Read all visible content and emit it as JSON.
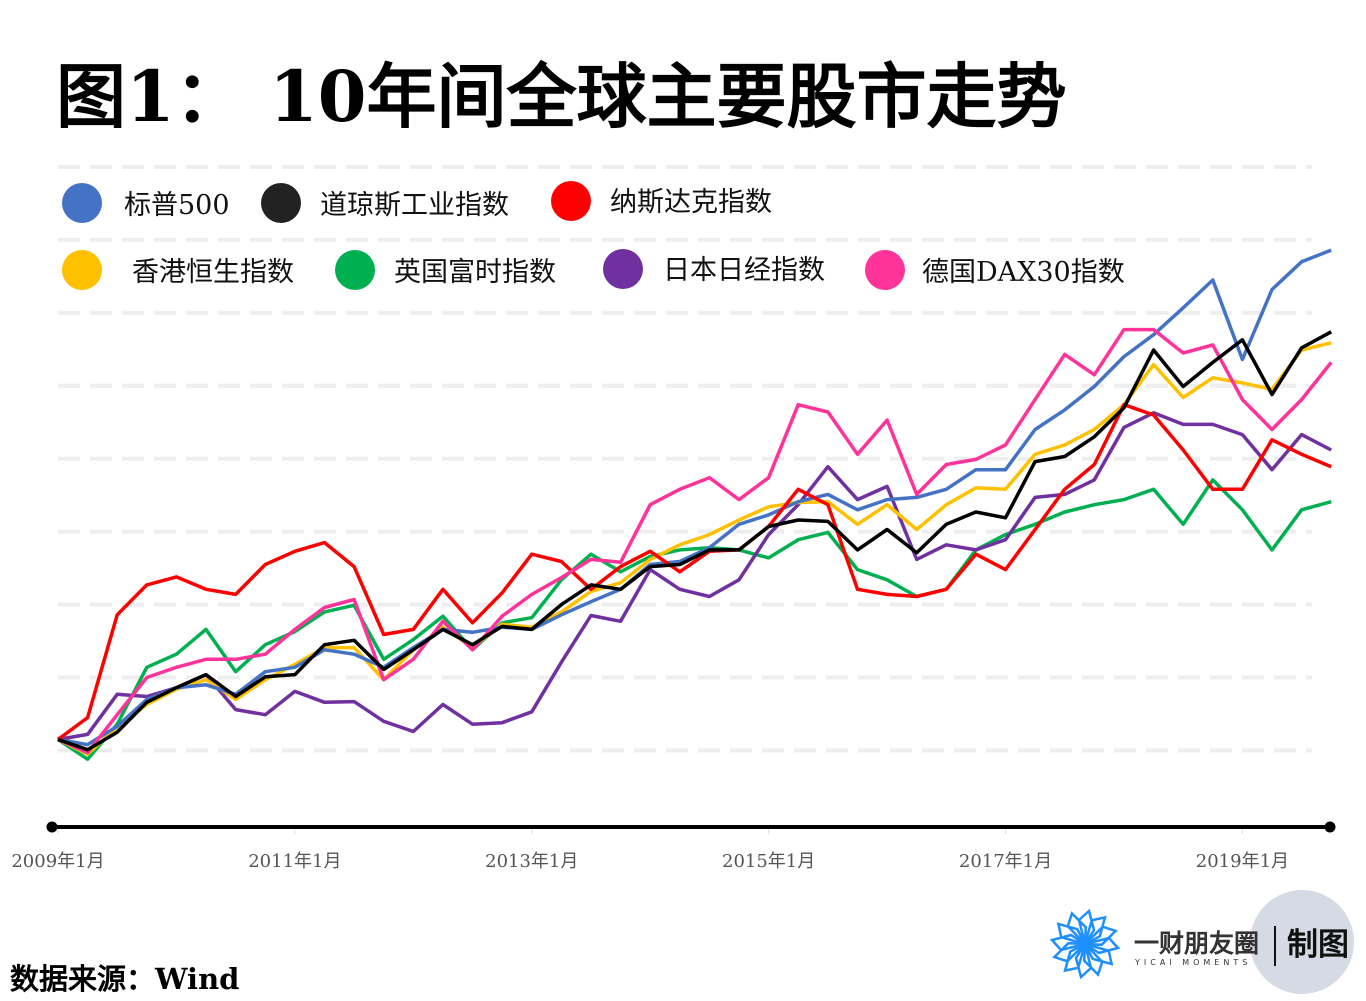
{
  "title": "图1：  10年间全球主要股市走势",
  "source": "数据来源：Wind",
  "logo": {
    "name_cn": "一财朋友圈",
    "name_en": "YICAI MOMENTS",
    "maker": "制图"
  },
  "chart_data": {
    "type": "line",
    "title": "图1：  10年间全球主要股市走势",
    "xlabel": "",
    "ylabel": "",
    "y_units": "relative level (gridline step = 100, start ≈ 15); no y tick labels shown",
    "ylim": [
      -105,
      800
    ],
    "grid": true,
    "gridlines": [
      0,
      100,
      200,
      300,
      400,
      500,
      600,
      700,
      800
    ],
    "legend_placement": "top",
    "x_ticks": [
      "2009年1月",
      "2011年1月",
      "2013年1月",
      "2015年1月",
      "2017年1月",
      "2019年1月"
    ],
    "x_tick_months": [
      0,
      24,
      48,
      72,
      96,
      120
    ],
    "x_months": [
      0,
      3,
      6,
      9,
      12,
      15,
      18,
      21,
      24,
      27,
      30,
      33,
      36,
      39,
      42,
      45,
      48,
      51,
      54,
      57,
      60,
      63,
      66,
      69,
      72,
      75,
      78,
      81,
      84,
      87,
      90,
      93,
      96,
      99,
      102,
      105,
      108,
      111,
      114,
      117,
      120,
      123,
      126,
      129
    ],
    "series": [
      {
        "name": "标普500",
        "color": "#4472C4",
        "values": [
          15,
          8,
          33,
          70,
          86,
          90,
          77,
          108,
          114,
          138,
          132,
          114,
          141,
          166,
          162,
          169,
          166,
          186,
          204,
          221,
          255,
          259,
          278,
          310,
          323,
          341,
          351,
          330,
          344,
          347,
          358,
          385,
          385,
          440,
          467,
          499,
          540,
          570,
          607,
          645,
          536,
          632,
          670,
          686
        ]
      },
      {
        "name": "道琼斯工业指数",
        "color": "#000000",
        "values": [
          15,
          1,
          25,
          66,
          86,
          104,
          74,
          101,
          104,
          145,
          151,
          111,
          138,
          166,
          145,
          170,
          166,
          200,
          227,
          221,
          252,
          255,
          275,
          275,
          307,
          316,
          314,
          275,
          303,
          271,
          310,
          327,
          319,
          396,
          403,
          430,
          470,
          549,
          499,
          532,
          563,
          488,
          552,
          574
        ]
      },
      {
        "name": "纳斯达克指数",
        "color": "#FF0000",
        "values": [
          15,
          45,
          186,
          227,
          238,
          221,
          214,
          255,
          273,
          285,
          252,
          159,
          166,
          221,
          175,
          216,
          269,
          259,
          221,
          252,
          273,
          245,
          273,
          275,
          307,
          358,
          337,
          221,
          214,
          211,
          221,
          269,
          248,
          303,
          358,
          392,
          474,
          460,
          412,
          358,
          358,
          426,
          406,
          389
        ]
      },
      {
        "name": "香港恒生指数",
        "color": "#FFC000",
        "values": [
          15,
          -5,
          32,
          63,
          84,
          97,
          70,
          97,
          118,
          141,
          141,
          97,
          138,
          169,
          141,
          173,
          169,
          190,
          218,
          230,
          262,
          282,
          296,
          316,
          334,
          340,
          341,
          310,
          337,
          303,
          337,
          360,
          358,
          406,
          419,
          440,
          474,
          529,
          484,
          511,
          504,
          495,
          549,
          559
        ]
      },
      {
        "name": "英国富时指数",
        "color": "#00B050",
        "values": [
          15,
          -12,
          36,
          114,
          132,
          166,
          108,
          145,
          163,
          190,
          199,
          125,
          152,
          184,
          138,
          175,
          182,
          234,
          269,
          245,
          266,
          275,
          278,
          275,
          264,
          289,
          299,
          248,
          234,
          211,
          221,
          275,
          296,
          310,
          327,
          337,
          344,
          358,
          310,
          371,
          330,
          275,
          330,
          341
        ]
      },
      {
        "name": "日本日经指数",
        "color": "#7030A0",
        "values": [
          15,
          22,
          77,
          74,
          86,
          104,
          56,
          49,
          81,
          66,
          67,
          40,
          26,
          63,
          36,
          38,
          53,
          121,
          185,
          177,
          248,
          221,
          211,
          234,
          296,
          337,
          389,
          344,
          362,
          262,
          282,
          275,
          289,
          347,
          351,
          371,
          443,
          463,
          447,
          447,
          433,
          385,
          433,
          412
        ]
      },
      {
        "name": "德国DAX30指数",
        "color": "#FF3399",
        "values": [
          15,
          -3,
          49,
          100,
          114,
          125,
          125,
          132,
          166,
          196,
          207,
          97,
          125,
          177,
          138,
          184,
          214,
          237,
          262,
          258,
          337,
          358,
          374,
          344,
          374,
          474,
          464,
          406,
          453,
          351,
          392,
          399,
          419,
          481,
          543,
          515,
          577,
          577,
          545,
          556,
          481,
          440,
          481,
          532
        ]
      }
    ]
  }
}
